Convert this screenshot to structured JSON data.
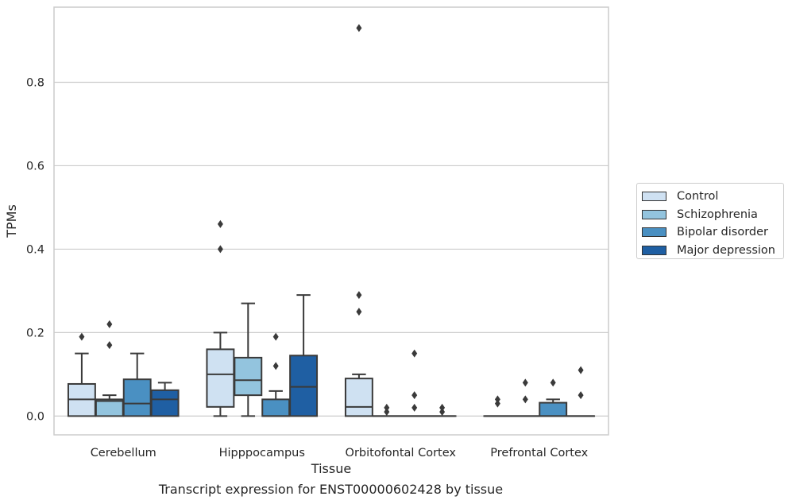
{
  "chart_data": {
    "type": "box",
    "title": "",
    "xlabel": "Tissue",
    "ylabel": "TPMs",
    "caption": "Transcript expression for ENST00000602428 by tissue",
    "categories": [
      "Cerebellum",
      "Hipppocampus",
      "Orbitofontal Cortex",
      "Prefrontal Cortex"
    ],
    "ylim": [
      -0.045,
      0.98
    ],
    "yticks": [
      0.0,
      0.2,
      0.4,
      0.6,
      0.8
    ],
    "ytick_labels": [
      "0.0",
      "0.2",
      "0.4",
      "0.6",
      "0.8"
    ],
    "grid": "horizontal",
    "legend_position": "right",
    "series": [
      {
        "name": "Control",
        "color": "#cfe1f2",
        "boxes": [
          {
            "q1": 0.0,
            "median": 0.04,
            "q3": 0.077,
            "whislo": 0.0,
            "whishi": 0.15,
            "fliers": [
              0.19
            ]
          },
          {
            "q1": 0.022,
            "median": 0.1,
            "q3": 0.16,
            "whislo": 0.0,
            "whishi": 0.2,
            "fliers": [
              0.4,
              0.46
            ]
          },
          {
            "q1": 0.0,
            "median": 0.022,
            "q3": 0.09,
            "whislo": 0.0,
            "whishi": 0.1,
            "fliers": [
              0.25,
              0.29,
              0.93
            ]
          },
          {
            "q1": 0.0,
            "median": 0.0,
            "q3": 0.0,
            "whislo": 0.0,
            "whishi": 0.0,
            "fliers": [
              0.03,
              0.04
            ]
          }
        ]
      },
      {
        "name": "Schizophrenia",
        "color": "#93c4de",
        "boxes": [
          {
            "q1": 0.0,
            "median": 0.036,
            "q3": 0.04,
            "whislo": 0.0,
            "whishi": 0.05,
            "fliers": [
              0.17,
              0.22
            ]
          },
          {
            "q1": 0.05,
            "median": 0.086,
            "q3": 0.14,
            "whislo": 0.0,
            "whishi": 0.27,
            "fliers": []
          },
          {
            "q1": 0.0,
            "median": 0.0,
            "q3": 0.0,
            "whislo": 0.0,
            "whishi": 0.0,
            "fliers": [
              0.01,
              0.02
            ]
          },
          {
            "q1": 0.0,
            "median": 0.0,
            "q3": 0.0,
            "whislo": 0.0,
            "whishi": 0.0,
            "fliers": [
              0.04,
              0.08
            ]
          }
        ]
      },
      {
        "name": "Bipolar disorder",
        "color": "#4a90c2",
        "boxes": [
          {
            "q1": 0.0,
            "median": 0.03,
            "q3": 0.088,
            "whislo": 0.0,
            "whishi": 0.15,
            "fliers": []
          },
          {
            "q1": 0.0,
            "median": 0.0,
            "q3": 0.04,
            "whislo": 0.0,
            "whishi": 0.06,
            "fliers": [
              0.12,
              0.19
            ]
          },
          {
            "q1": 0.0,
            "median": 0.0,
            "q3": 0.0,
            "whislo": 0.0,
            "whishi": 0.0,
            "fliers": [
              0.02,
              0.05,
              0.15
            ]
          },
          {
            "q1": 0.0,
            "median": 0.0,
            "q3": 0.032,
            "whislo": 0.0,
            "whishi": 0.04,
            "fliers": [
              0.08
            ]
          }
        ]
      },
      {
        "name": "Major depression",
        "color": "#1f5fa3",
        "boxes": [
          {
            "q1": 0.0,
            "median": 0.04,
            "q3": 0.062,
            "whislo": 0.0,
            "whishi": 0.08,
            "fliers": []
          },
          {
            "q1": 0.0,
            "median": 0.07,
            "q3": 0.145,
            "whislo": 0.0,
            "whishi": 0.29,
            "fliers": []
          },
          {
            "q1": 0.0,
            "median": 0.0,
            "q3": 0.0,
            "whislo": 0.0,
            "whishi": 0.0,
            "fliers": [
              0.01,
              0.02
            ]
          },
          {
            "q1": 0.0,
            "median": 0.0,
            "q3": 0.0,
            "whislo": 0.0,
            "whishi": 0.0,
            "fliers": [
              0.05,
              0.11
            ]
          }
        ]
      }
    ]
  }
}
